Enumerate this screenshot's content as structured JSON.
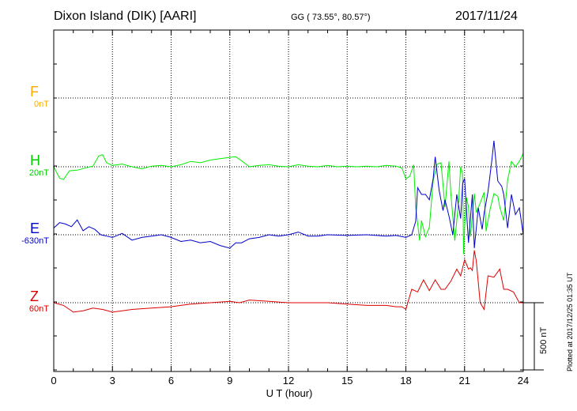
{
  "header": {
    "station": "Dixon Island (DIK)  [AARI]",
    "coords": "GG ( 73.55°,  80.57°)",
    "date": "2017/11/24"
  },
  "components": [
    {
      "letter": "F",
      "baseline": "0nT",
      "color": "#ffaa00"
    },
    {
      "letter": "H",
      "baseline": "20nT",
      "color": "#00cc00"
    },
    {
      "letter": "E",
      "baseline": "-630nT",
      "color": "#0000cc"
    },
    {
      "letter": "Z",
      "baseline": "60nT",
      "color": "#dd0000"
    }
  ],
  "scale_label": "500 nT",
  "plotted_note": "Plotted at 2017/12/25 01:35 UT",
  "chart_data": {
    "type": "line",
    "xlabel": "U T (hour)",
    "xlim": [
      0,
      24
    ],
    "xticks": [
      "0",
      "3",
      "6",
      "9",
      "12",
      "15",
      "18",
      "21",
      "24"
    ],
    "ylabel": "",
    "scale_bar_nT": 500,
    "grid": true,
    "series": [
      {
        "name": "H",
        "color": "#00ee00",
        "baseline_nT": 20,
        "x": [
          0,
          0.3,
          0.5,
          0.8,
          1.2,
          1.6,
          2.0,
          2.3,
          2.5,
          2.7,
          3.0,
          3.5,
          4.0,
          4.5,
          5.0,
          5.5,
          6.0,
          6.5,
          7.0,
          7.5,
          8.0,
          8.5,
          9.0,
          9.3,
          9.6,
          10.0,
          10.5,
          11.0,
          11.5,
          12.0,
          12.5,
          13.0,
          13.5,
          14.0,
          14.5,
          15.0,
          15.5,
          16.0,
          16.5,
          17.0,
          17.5,
          17.8,
          18.0,
          18.2,
          18.4,
          18.5,
          18.6,
          18.7,
          18.8,
          19.0,
          19.2,
          19.4,
          19.6,
          19.8,
          20.0,
          20.2,
          20.3,
          20.5,
          20.6,
          20.7,
          20.8,
          20.9,
          20.95,
          21.0,
          21.1,
          21.2,
          21.3,
          21.5,
          21.6,
          21.8,
          22.0,
          22.1,
          22.3,
          22.5,
          22.7,
          22.8,
          23.0,
          23.2,
          23.4,
          23.6,
          23.8,
          24.0
        ],
        "y": [
          0,
          -85,
          -95,
          -30,
          -25,
          -10,
          5,
          80,
          90,
          30,
          10,
          20,
          0,
          -15,
          5,
          10,
          0,
          15,
          40,
          30,
          50,
          60,
          70,
          75,
          45,
          0,
          10,
          15,
          5,
          0,
          15,
          5,
          0,
          10,
          0,
          5,
          0,
          5,
          0,
          10,
          5,
          -10,
          -90,
          -70,
          15,
          -300,
          -420,
          -550,
          -400,
          -520,
          -450,
          -100,
          20,
          30,
          -300,
          40,
          -200,
          -550,
          -400,
          -250,
          0,
          -50,
          -650,
          -450,
          -230,
          -300,
          -520,
          -200,
          -340,
          -270,
          -190,
          -480,
          -320,
          -200,
          -220,
          -300,
          -400,
          -100,
          40,
          0,
          40,
          100
        ]
      },
      {
        "name": "E",
        "color": "#0000cc",
        "baseline_nT": -630,
        "x": [
          0,
          0.3,
          0.6,
          0.9,
          1.2,
          1.5,
          1.8,
          2.1,
          2.4,
          2.7,
          3.0,
          3.5,
          4.0,
          4.5,
          5.0,
          5.5,
          6.0,
          6.5,
          7.0,
          7.5,
          8.0,
          8.5,
          9.0,
          9.3,
          9.6,
          10.0,
          10.5,
          11.0,
          11.5,
          12.0,
          12.5,
          13.0,
          13.5,
          14.0,
          15.0,
          16.0,
          17.0,
          17.5,
          18.0,
          18.3,
          18.5,
          18.6,
          18.8,
          19.0,
          19.2,
          19.4,
          19.5,
          19.7,
          19.9,
          20.0,
          20.2,
          20.4,
          20.6,
          20.8,
          20.9,
          21.0,
          21.1,
          21.2,
          21.4,
          21.5,
          21.7,
          21.9,
          22.0,
          22.2,
          22.4,
          22.5,
          22.7,
          22.9,
          23.0,
          23.2,
          23.4,
          23.6,
          23.8,
          24.0
        ],
        "y": [
          50,
          90,
          80,
          60,
          110,
          30,
          60,
          40,
          0,
          -10,
          -20,
          10,
          -40,
          -20,
          -10,
          0,
          -20,
          -50,
          -40,
          -60,
          -50,
          -80,
          -100,
          -60,
          -60,
          -30,
          -20,
          0,
          -10,
          0,
          20,
          -10,
          -10,
          0,
          -5,
          0,
          -10,
          -5,
          -20,
          0,
          100,
          350,
          300,
          300,
          260,
          420,
          580,
          330,
          180,
          260,
          140,
          0,
          300,
          120,
          380,
          420,
          180,
          -60,
          300,
          -100,
          200,
          40,
          160,
          320,
          560,
          700,
          400,
          360,
          300,
          50,
          300,
          150,
          200,
          0
        ]
      },
      {
        "name": "Z",
        "color": "#dd0000",
        "baseline_nT": 60,
        "x": [
          0,
          0.5,
          1.0,
          1.5,
          2.0,
          2.5,
          3.0,
          3.5,
          4.0,
          5.0,
          6.0,
          6.5,
          7.0,
          8.0,
          9.0,
          9.5,
          10.0,
          11.0,
          12.0,
          13.0,
          14.0,
          15.0,
          16.0,
          17.0,
          17.5,
          17.8,
          18.0,
          18.3,
          18.6,
          18.9,
          19.2,
          19.5,
          19.8,
          20.0,
          20.3,
          20.6,
          20.8,
          21.0,
          21.2,
          21.3,
          21.4,
          21.5,
          21.6,
          21.8,
          22.0,
          22.2,
          22.5,
          22.8,
          23.0,
          23.2,
          23.5,
          23.8,
          24.0
        ],
        "y": [
          0,
          -20,
          -70,
          -60,
          -40,
          -50,
          -70,
          -60,
          -50,
          -40,
          -30,
          -20,
          -10,
          0,
          10,
          0,
          20,
          10,
          0,
          0,
          0,
          -10,
          -20,
          -20,
          -30,
          -30,
          -50,
          100,
          80,
          170,
          90,
          170,
          100,
          100,
          160,
          250,
          200,
          320,
          250,
          260,
          240,
          390,
          310,
          0,
          -50,
          200,
          190,
          250,
          100,
          100,
          80,
          0,
          0
        ]
      }
    ]
  }
}
